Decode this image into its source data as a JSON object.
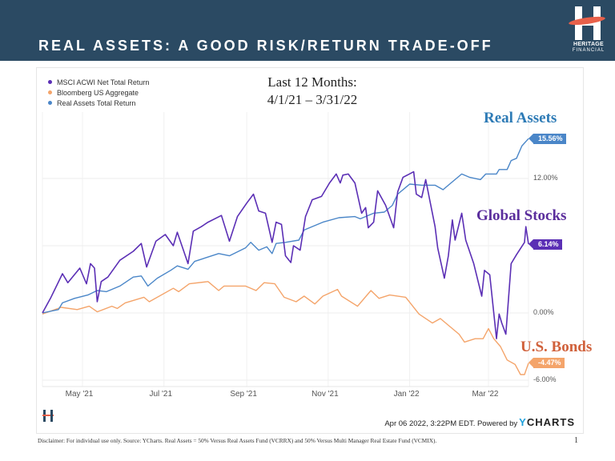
{
  "header": {
    "title": "REAL ASSETS: A GOOD RISK/RETURN TRADE-OFF",
    "logo_text": [
      "HERITAGE",
      "FINANCIAL"
    ],
    "color": "#2b4a63"
  },
  "chart_data": {
    "type": "line",
    "subtitle_lines": [
      "Last 12 Months:",
      "4/1/21 – 3/31/22"
    ],
    "x_type": "date",
    "xlim": [
      "2021-04-01",
      "2022-03-31"
    ],
    "x_ticks": [
      {
        "date": "2021-05-01",
        "label": "May '21"
      },
      {
        "date": "2021-07-01",
        "label": "Jul '21"
      },
      {
        "date": "2021-09-01",
        "label": "Sep '21"
      },
      {
        "date": "2021-11-01",
        "label": "Nov '21"
      },
      {
        "date": "2022-01-01",
        "label": "Jan '22"
      },
      {
        "date": "2022-03-01",
        "label": "Mar '22"
      }
    ],
    "ylim": [
      -6.5,
      17
    ],
    "y_ticks": [
      {
        "value": 12,
        "label": "12.00%"
      },
      {
        "value": 0,
        "label": "0.00%"
      },
      {
        "value": -6,
        "label": "-6.00%"
      }
    ],
    "y_gridlines": [
      -6,
      0,
      6,
      12
    ],
    "y_axis_side": "right",
    "grid": true,
    "legend_position": "top-left",
    "series": [
      {
        "name": "MSCI ACWI Net Total Return",
        "annotation": "Global Stocks",
        "color": "#5b2fb5",
        "annotation_color": "#5a2d9c",
        "end_label": "6.14%",
        "points": [
          [
            "2021-04-01",
            0
          ],
          [
            "2021-04-07",
            1.3
          ],
          [
            "2021-04-16",
            3.5
          ],
          [
            "2021-04-20",
            2.7
          ],
          [
            "2021-04-29",
            4.0
          ],
          [
            "2021-05-04",
            2.6
          ],
          [
            "2021-05-07",
            4.4
          ],
          [
            "2021-05-10",
            4.0
          ],
          [
            "2021-05-12",
            1.0
          ],
          [
            "2021-05-15",
            2.8
          ],
          [
            "2021-05-20",
            3.2
          ],
          [
            "2021-05-29",
            4.7
          ],
          [
            "2021-06-08",
            5.5
          ],
          [
            "2021-06-14",
            6.2
          ],
          [
            "2021-06-18",
            4.1
          ],
          [
            "2021-06-25",
            6.4
          ],
          [
            "2021-07-02",
            7.0
          ],
          [
            "2021-07-08",
            6.0
          ],
          [
            "2021-07-11",
            7.2
          ],
          [
            "2021-07-19",
            4.4
          ],
          [
            "2021-07-23",
            7.3
          ],
          [
            "2021-07-29",
            7.7
          ],
          [
            "2021-08-03",
            8.1
          ],
          [
            "2021-08-13",
            8.7
          ],
          [
            "2021-08-19",
            6.4
          ],
          [
            "2021-08-25",
            8.6
          ],
          [
            "2021-09-01",
            9.8
          ],
          [
            "2021-09-06",
            10.6
          ],
          [
            "2021-09-10",
            9.1
          ],
          [
            "2021-09-15",
            8.9
          ],
          [
            "2021-09-20",
            6.3
          ],
          [
            "2021-09-23",
            8.1
          ],
          [
            "2021-09-27",
            7.9
          ],
          [
            "2021-09-30",
            5.1
          ],
          [
            "2021-10-04",
            4.5
          ],
          [
            "2021-10-06",
            6.0
          ],
          [
            "2021-10-11",
            5.6
          ],
          [
            "2021-10-15",
            8.6
          ],
          [
            "2021-10-20",
            10.1
          ],
          [
            "2021-10-27",
            10.4
          ],
          [
            "2021-11-02",
            11.6
          ],
          [
            "2021-11-07",
            12.4
          ],
          [
            "2021-11-10",
            11.6
          ],
          [
            "2021-11-12",
            12.3
          ],
          [
            "2021-11-16",
            12.4
          ],
          [
            "2021-11-21",
            11.6
          ],
          [
            "2021-11-26",
            8.9
          ],
          [
            "2021-11-29",
            9.4
          ],
          [
            "2021-12-01",
            7.6
          ],
          [
            "2021-12-05",
            8.1
          ],
          [
            "2021-12-08",
            10.9
          ],
          [
            "2021-12-14",
            9.6
          ],
          [
            "2021-12-20",
            7.6
          ],
          [
            "2021-12-23",
            10.8
          ],
          [
            "2021-12-27",
            12.1
          ],
          [
            "2022-01-04",
            12.6
          ],
          [
            "2022-01-06",
            10.6
          ],
          [
            "2022-01-10",
            10.3
          ],
          [
            "2022-01-13",
            11.9
          ],
          [
            "2022-01-16",
            10.1
          ],
          [
            "2022-01-20",
            7.7
          ],
          [
            "2022-01-22",
            5.8
          ],
          [
            "2022-01-27",
            3.1
          ],
          [
            "2022-01-30",
            5.1
          ],
          [
            "2022-02-02",
            8.3
          ],
          [
            "2022-02-04",
            6.5
          ],
          [
            "2022-02-09",
            8.9
          ],
          [
            "2022-02-12",
            6.5
          ],
          [
            "2022-02-18",
            4.4
          ],
          [
            "2022-02-24",
            1.5
          ],
          [
            "2022-02-26",
            3.8
          ],
          [
            "2022-03-02",
            3.4
          ],
          [
            "2022-03-07",
            -2.3
          ],
          [
            "2022-03-09",
            -0.1
          ],
          [
            "2022-03-11",
            -0.9
          ],
          [
            "2022-03-14",
            -1.9
          ],
          [
            "2022-03-18",
            4.4
          ],
          [
            "2022-03-22",
            5.2
          ],
          [
            "2022-03-28",
            6.3
          ],
          [
            "2022-03-29",
            7.7
          ],
          [
            "2022-03-31",
            6.14
          ]
        ]
      },
      {
        "name": "Bloomberg US Aggregate",
        "annotation": "U.S. Bonds",
        "color": "#f4a46a",
        "annotation_color": "#d0603a",
        "end_label": "-4.47%",
        "points": [
          [
            "2021-04-01",
            -0.1
          ],
          [
            "2021-04-15",
            0.5
          ],
          [
            "2021-04-27",
            0.3
          ],
          [
            "2021-05-06",
            0.6
          ],
          [
            "2021-05-12",
            0.1
          ],
          [
            "2021-05-23",
            0.6
          ],
          [
            "2021-05-27",
            0.4
          ],
          [
            "2021-06-02",
            0.9
          ],
          [
            "2021-06-16",
            1.4
          ],
          [
            "2021-06-20",
            1.0
          ],
          [
            "2021-07-08",
            2.2
          ],
          [
            "2021-07-12",
            1.9
          ],
          [
            "2021-07-20",
            2.6
          ],
          [
            "2021-08-03",
            2.8
          ],
          [
            "2021-08-11",
            2.0
          ],
          [
            "2021-08-15",
            2.4
          ],
          [
            "2021-08-31",
            2.4
          ],
          [
            "2021-09-08",
            2.0
          ],
          [
            "2021-09-14",
            2.7
          ],
          [
            "2021-09-22",
            2.6
          ],
          [
            "2021-09-29",
            1.4
          ],
          [
            "2021-10-08",
            1.0
          ],
          [
            "2021-10-14",
            1.5
          ],
          [
            "2021-10-22",
            0.8
          ],
          [
            "2021-10-28",
            1.5
          ],
          [
            "2021-11-08",
            2.1
          ],
          [
            "2021-11-11",
            1.5
          ],
          [
            "2021-11-23",
            0.6
          ],
          [
            "2021-12-03",
            2.0
          ],
          [
            "2021-12-09",
            1.3
          ],
          [
            "2021-12-17",
            1.6
          ],
          [
            "2021-12-29",
            1.4
          ],
          [
            "2022-01-08",
            -0.1
          ],
          [
            "2022-01-18",
            -0.9
          ],
          [
            "2022-01-24",
            -0.5
          ],
          [
            "2022-02-07",
            -1.9
          ],
          [
            "2022-02-11",
            -2.6
          ],
          [
            "2022-02-19",
            -2.3
          ],
          [
            "2022-02-25",
            -2.3
          ],
          [
            "2022-03-01",
            -1.4
          ],
          [
            "2022-03-05",
            -2.3
          ],
          [
            "2022-03-10",
            -3.0
          ],
          [
            "2022-03-15",
            -4.2
          ],
          [
            "2022-03-21",
            -4.6
          ],
          [
            "2022-03-25",
            -5.5
          ],
          [
            "2022-03-28",
            -5.5
          ],
          [
            "2022-03-31",
            -4.47
          ]
        ]
      },
      {
        "name": "Real Assets Total Return",
        "annotation": "Real Assets",
        "color": "#4a86c8",
        "annotation_color": "#2e7bb6",
        "end_label": "15.56%",
        "points": [
          [
            "2021-04-01",
            0
          ],
          [
            "2021-04-13",
            0.3
          ],
          [
            "2021-04-16",
            0.9
          ],
          [
            "2021-04-25",
            1.3
          ],
          [
            "2021-05-05",
            1.6
          ],
          [
            "2021-05-12",
            2.0
          ],
          [
            "2021-05-19",
            1.9
          ],
          [
            "2021-05-29",
            2.4
          ],
          [
            "2021-06-08",
            3.2
          ],
          [
            "2021-06-14",
            3.3
          ],
          [
            "2021-06-19",
            2.4
          ],
          [
            "2021-06-26",
            3.1
          ],
          [
            "2021-07-06",
            3.8
          ],
          [
            "2021-07-11",
            4.2
          ],
          [
            "2021-07-19",
            3.9
          ],
          [
            "2021-07-24",
            4.6
          ],
          [
            "2021-08-11",
            5.3
          ],
          [
            "2021-08-19",
            5.1
          ],
          [
            "2021-08-31",
            5.8
          ],
          [
            "2021-09-04",
            6.3
          ],
          [
            "2021-09-10",
            5.6
          ],
          [
            "2021-09-16",
            5.9
          ],
          [
            "2021-09-20",
            5.3
          ],
          [
            "2021-09-23",
            6.2
          ],
          [
            "2021-09-30",
            6.3
          ],
          [
            "2021-10-10",
            6.5
          ],
          [
            "2021-10-14",
            7.4
          ],
          [
            "2021-10-28",
            8.1
          ],
          [
            "2021-11-09",
            8.5
          ],
          [
            "2021-11-21",
            8.6
          ],
          [
            "2021-11-25",
            8.4
          ],
          [
            "2021-12-05",
            8.9
          ],
          [
            "2021-12-13",
            9.0
          ],
          [
            "2021-12-19",
            9.6
          ],
          [
            "2021-12-23",
            10.6
          ],
          [
            "2022-01-01",
            11.5
          ],
          [
            "2022-01-10",
            11.4
          ],
          [
            "2022-01-20",
            11.4
          ],
          [
            "2022-01-26",
            11.0
          ],
          [
            "2022-01-30",
            11.4
          ],
          [
            "2022-02-09",
            12.4
          ],
          [
            "2022-02-15",
            12.1
          ],
          [
            "2022-02-23",
            11.9
          ],
          [
            "2022-02-27",
            12.4
          ],
          [
            "2022-03-07",
            12.4
          ],
          [
            "2022-03-09",
            12.8
          ],
          [
            "2022-03-15",
            12.8
          ],
          [
            "2022-03-18",
            13.6
          ],
          [
            "2022-03-22",
            13.8
          ],
          [
            "2022-03-26",
            14.9
          ],
          [
            "2022-03-31",
            15.56
          ]
        ]
      }
    ]
  },
  "footer": {
    "timestamp": "Apr 06 2022, 3:22PM EDT. Powered by",
    "brand_y": "Y",
    "brand_rest": "CHARTS",
    "disclaimer": "Disclaimer: For individual use only. Source: YCharts. Real Assets = 50% Versus Real Assets Fund (VCRRX) and 50% Versus Multi Manager Real Estate Fund (VCMIX).",
    "page_number": "1"
  }
}
